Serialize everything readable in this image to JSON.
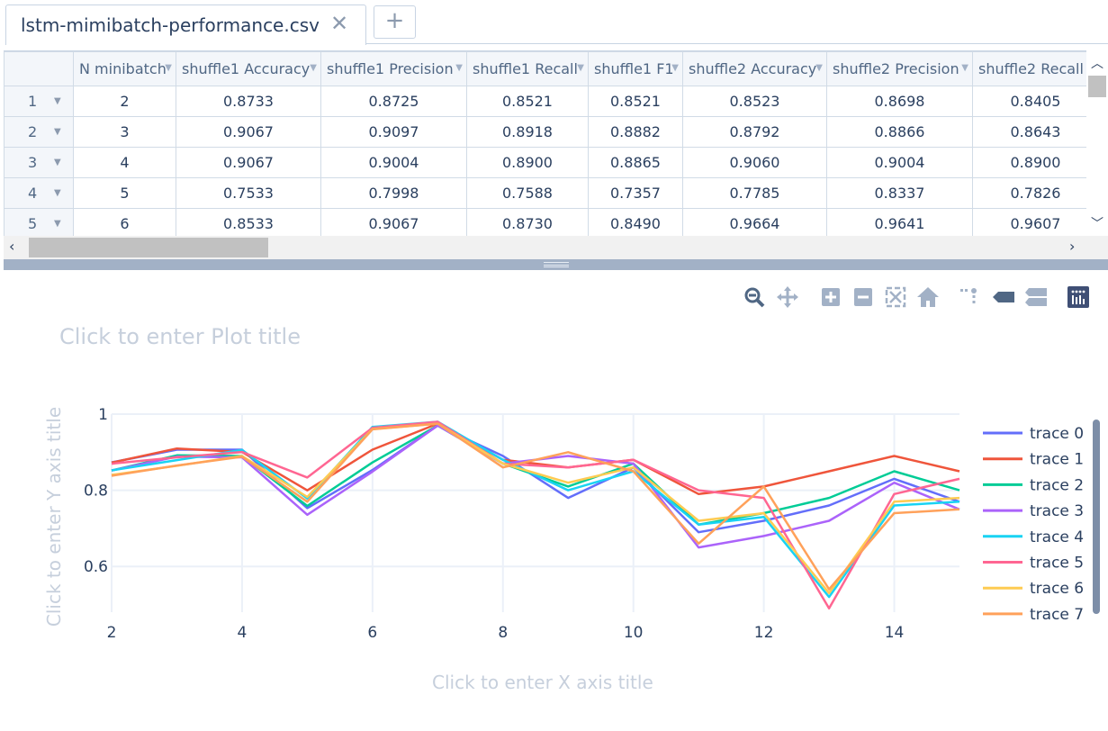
{
  "tab": {
    "title": "lstm-mimibatch-performance.csv",
    "close_glyph": "✕",
    "add_glyph": "+"
  },
  "grid": {
    "columns": [
      "N minibatch",
      "shuffle1 Accuracy",
      "shuffle1 Precision",
      "shuffle1 Recall",
      "shuffle1 F1",
      "shuffle2 Accuracy",
      "shuffle2 Precision",
      "shuffle2 Recall"
    ],
    "rows": [
      {
        "num": "1",
        "cells": [
          "2",
          "0.8733",
          "0.8725",
          "0.8521",
          "0.8521",
          "0.8523",
          "0.8698",
          "0.8405"
        ]
      },
      {
        "num": "2",
        "cells": [
          "3",
          "0.9067",
          "0.9097",
          "0.8918",
          "0.8882",
          "0.8792",
          "0.8866",
          "0.8643"
        ]
      },
      {
        "num": "3",
        "cells": [
          "4",
          "0.9067",
          "0.9004",
          "0.8900",
          "0.8865",
          "0.9060",
          "0.9004",
          "0.8900"
        ]
      },
      {
        "num": "4",
        "cells": [
          "5",
          "0.7533",
          "0.7998",
          "0.7588",
          "0.7357",
          "0.7785",
          "0.8337",
          "0.7826"
        ]
      },
      {
        "num": "5",
        "cells": [
          "6",
          "0.8533",
          "0.9067",
          "0.8730",
          "0.8490",
          "0.9664",
          "0.9641",
          "0.9607"
        ]
      }
    ]
  },
  "modebar": {
    "icons": [
      "zoom-icon",
      "pan-icon",
      "zoom-in-icon",
      "zoom-out-icon",
      "autoscale-icon",
      "reset-axes-icon",
      "spike-lines-icon",
      "hover-closest-icon",
      "hover-compare-icon",
      "plotly-logo-icon"
    ]
  },
  "plot": {
    "title_placeholder": "Click to enter Plot title",
    "xaxis_placeholder": "Click to enter X axis title",
    "yaxis_placeholder": "Click to enter Y axis title"
  },
  "chart_data": {
    "type": "line",
    "title": "",
    "xlabel": "",
    "ylabel": "",
    "xlim": [
      2,
      15
    ],
    "ylim": [
      0.48,
      1.0
    ],
    "xticks": [
      2,
      4,
      6,
      8,
      10,
      12,
      14
    ],
    "yticks": [
      0.6,
      0.8,
      1
    ],
    "ytick_labels": [
      "0.6",
      "0.8",
      "1"
    ],
    "grid": true,
    "legend_position": "right",
    "x": [
      2,
      3,
      4,
      5,
      6,
      7,
      8,
      9,
      10,
      11,
      12,
      13,
      14,
      15
    ],
    "series": [
      {
        "name": "trace 0",
        "color": "#636efa",
        "values": [
          0.8733,
          0.9067,
          0.9067,
          0.7533,
          0.8533,
          0.97,
          0.89,
          0.78,
          0.86,
          0.69,
          0.72,
          0.76,
          0.83,
          0.77
        ]
      },
      {
        "name": "trace 1",
        "color": "#EF553B",
        "values": [
          0.8725,
          0.9097,
          0.9004,
          0.7998,
          0.9067,
          0.975,
          0.88,
          0.86,
          0.88,
          0.79,
          0.81,
          0.85,
          0.89,
          0.85
        ]
      },
      {
        "name": "trace 2",
        "color": "#00cc96",
        "values": [
          0.8521,
          0.8918,
          0.89,
          0.7588,
          0.873,
          0.97,
          0.87,
          0.81,
          0.87,
          0.71,
          0.74,
          0.78,
          0.85,
          0.8
        ]
      },
      {
        "name": "trace 3",
        "color": "#ab63fa",
        "values": [
          0.8521,
          0.8882,
          0.8865,
          0.7357,
          0.849,
          0.97,
          0.87,
          0.89,
          0.87,
          0.65,
          0.68,
          0.72,
          0.82,
          0.75
        ]
      },
      {
        "name": "trace 4",
        "color": "#19d3f3",
        "values": [
          0.8523,
          0.8792,
          0.906,
          0.7785,
          0.9664,
          0.98,
          0.88,
          0.8,
          0.85,
          0.71,
          0.73,
          0.52,
          0.76,
          0.77
        ]
      },
      {
        "name": "trace 5",
        "color": "#FF6692",
        "values": [
          0.8698,
          0.8866,
          0.9004,
          0.8337,
          0.9641,
          0.98,
          0.87,
          0.86,
          0.88,
          0.8,
          0.78,
          0.49,
          0.79,
          0.83
        ]
      },
      {
        "name": "trace 6",
        "color": "#FECB52",
        "values": [
          0.8405,
          0.8643,
          0.89,
          0.7826,
          0.9607,
          0.975,
          0.87,
          0.82,
          0.86,
          0.72,
          0.74,
          0.53,
          0.77,
          0.78
        ]
      },
      {
        "name": "trace 7",
        "color": "#FFA15A",
        "values": [
          0.838,
          0.865,
          0.888,
          0.77,
          0.96,
          0.975,
          0.86,
          0.9,
          0.85,
          0.66,
          0.81,
          0.54,
          0.74,
          0.75
        ]
      }
    ]
  }
}
